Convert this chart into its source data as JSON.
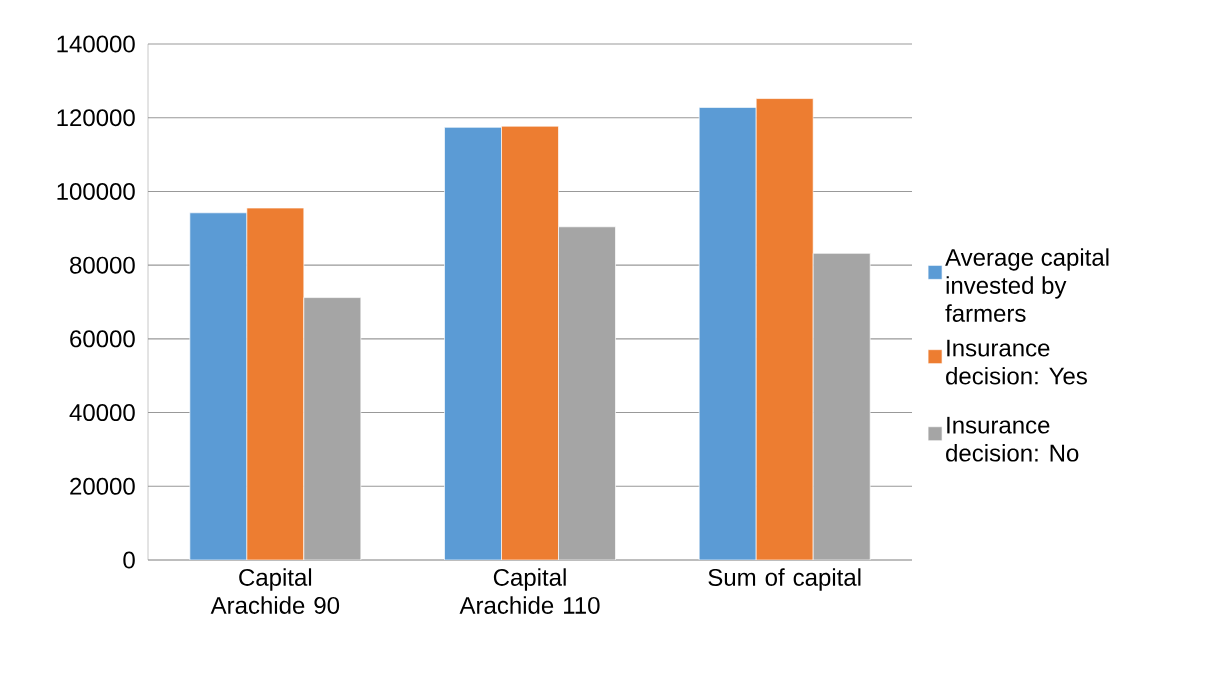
{
  "chart_data": {
    "type": "bar",
    "categories": [
      "Capital Arachide 90",
      "Capital Arachide 110",
      "Sum of capital"
    ],
    "series": [
      {
        "name": "Average capital invested by farmers",
        "color": "#5b9bd5",
        "values": [
          94200,
          117400,
          122800
        ]
      },
      {
        "name": "Insurance decision: Yes",
        "color": "#ed7d31",
        "values": [
          95500,
          117700,
          125200
        ]
      },
      {
        "name": "Insurance decision: No",
        "color": "#a5a5a5",
        "values": [
          71200,
          90400,
          83200
        ]
      }
    ],
    "ylim": [
      0,
      140000
    ],
    "yticks": [
      0,
      20000,
      40000,
      60000,
      80000,
      100000,
      120000,
      140000
    ],
    "grid": "y",
    "legend": "right"
  }
}
